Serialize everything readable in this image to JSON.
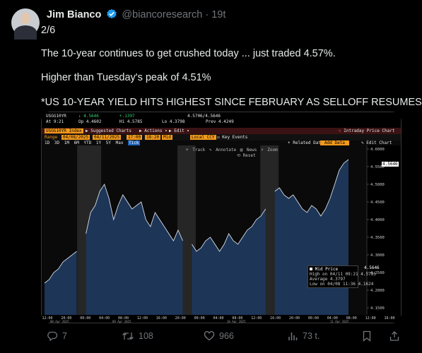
{
  "tweet": {
    "author_name": "Jim Bianco",
    "handle": "@biancoresearch",
    "separator": "·",
    "time": "19t",
    "lines": [
      "2/6",
      "The 10-year continues to get crushed today ... just traded 4.57%.",
      "Higher than Tuesday's peak of 4.51%",
      "*US 10-YEAR YIELD HITS HIGHEST SINCE FEBRUARY AS SELLOFF RESUMES"
    ]
  },
  "terminal": {
    "ticker": "USGG10YR",
    "last": "↓ 4.5646",
    "change": "+.1397",
    "hilo": "4.5706/4.5646",
    "at": "At 9:21",
    "op": "Op 4.4602",
    "hi": "Hi 4.5785",
    "lo": "Lo 4.3798",
    "prev": "Prev 4.4249",
    "index_label": "USGG10YR Index",
    "menu_suggested": "Suggested Charts",
    "menu_actions": "Actions",
    "menu_edit": "Edit",
    "intraday_title": "Intraday Price Chart",
    "range_label": "Range",
    "date_from": "04/08/2025",
    "date_to": "04/11/2025",
    "time_from": "17:00",
    "time_to": "18:20",
    "mid_label": "Mid",
    "local_label": "Local CCY",
    "key_events": "Key Events",
    "periods": [
      "1D",
      "3D",
      "1M",
      "6M",
      "YTD",
      "1Y",
      "5Y",
      "Max",
      "Tick"
    ],
    "related_data": "Related Data",
    "add_data": "Add Data",
    "edit_chart": "Edit Chart",
    "toolbar": [
      "Track",
      "Annotate",
      "News",
      "Zoom"
    ],
    "reset_label": "Reset",
    "y_ticks": [
      "4.6000",
      "4.5500",
      "4.5000",
      "4.4500",
      "4.4000",
      "4.3500",
      "4.3000",
      "4.2500",
      "4.2000",
      "4.1500"
    ],
    "last_value": "4.5646",
    "x_ticks": [
      "12:00",
      "20:00",
      "00:00",
      "04:00",
      "08:00",
      "12:00",
      "16:00",
      "20:00",
      "00:00",
      "04:00",
      "08:00",
      "12:00",
      "16:00",
      "20:00",
      "00:00",
      "04:00",
      "08:00",
      "12:00",
      "16:00"
    ],
    "date_labels": [
      "08 Apr 2025",
      "09 Apr 2025",
      "10 Apr 2025",
      "11 Apr 2025"
    ],
    "legend": {
      "title": "Mid Price",
      "rows": [
        {
          "label": "Mid Price",
          "value": "4.5646"
        },
        {
          "label": "High on 04/11 09:21",
          "value": "4.5785"
        },
        {
          "label": "Average",
          "value": "4.3797"
        },
        {
          "label": "Low on 04/08 11:36",
          "value": "4.1624"
        }
      ]
    },
    "colors": {
      "accent": "#f39a1b",
      "series_fill": "#1d3557",
      "series_line": "#d8dde6",
      "session_bg": "#262626"
    }
  },
  "chart_data": {
    "type": "area",
    "title": "",
    "xlabel": "",
    "ylabel": "",
    "ylim": [
      4.13,
      4.61
    ],
    "series": [
      {
        "values": [
          4.22,
          4.23,
          4.25,
          4.26,
          4.28,
          4.29,
          4.3,
          4.31,
          null,
          4.36,
          4.42,
          4.44,
          4.48,
          4.5,
          4.46,
          4.4,
          4.44,
          4.47,
          4.45,
          4.43,
          4.44,
          4.45,
          4.4,
          4.38,
          4.42,
          4.4,
          4.38,
          4.36,
          4.34,
          4.37,
          4.34,
          null,
          4.33,
          4.31,
          4.32,
          4.34,
          4.35,
          4.33,
          4.31,
          4.33,
          4.36,
          4.34,
          4.33,
          4.35,
          4.37,
          4.38,
          4.4,
          4.41,
          4.43,
          null,
          4.48,
          4.49,
          4.47,
          4.46,
          4.47,
          4.45,
          4.43,
          4.42,
          4.44,
          4.43,
          4.41,
          4.43,
          4.46,
          4.5,
          4.54,
          4.56,
          4.57
        ]
      }
    ],
    "grid": false
  },
  "actions": {
    "reply_count": "7",
    "retweet_count": "108",
    "like_count": "966",
    "views_count": "73 t."
  }
}
